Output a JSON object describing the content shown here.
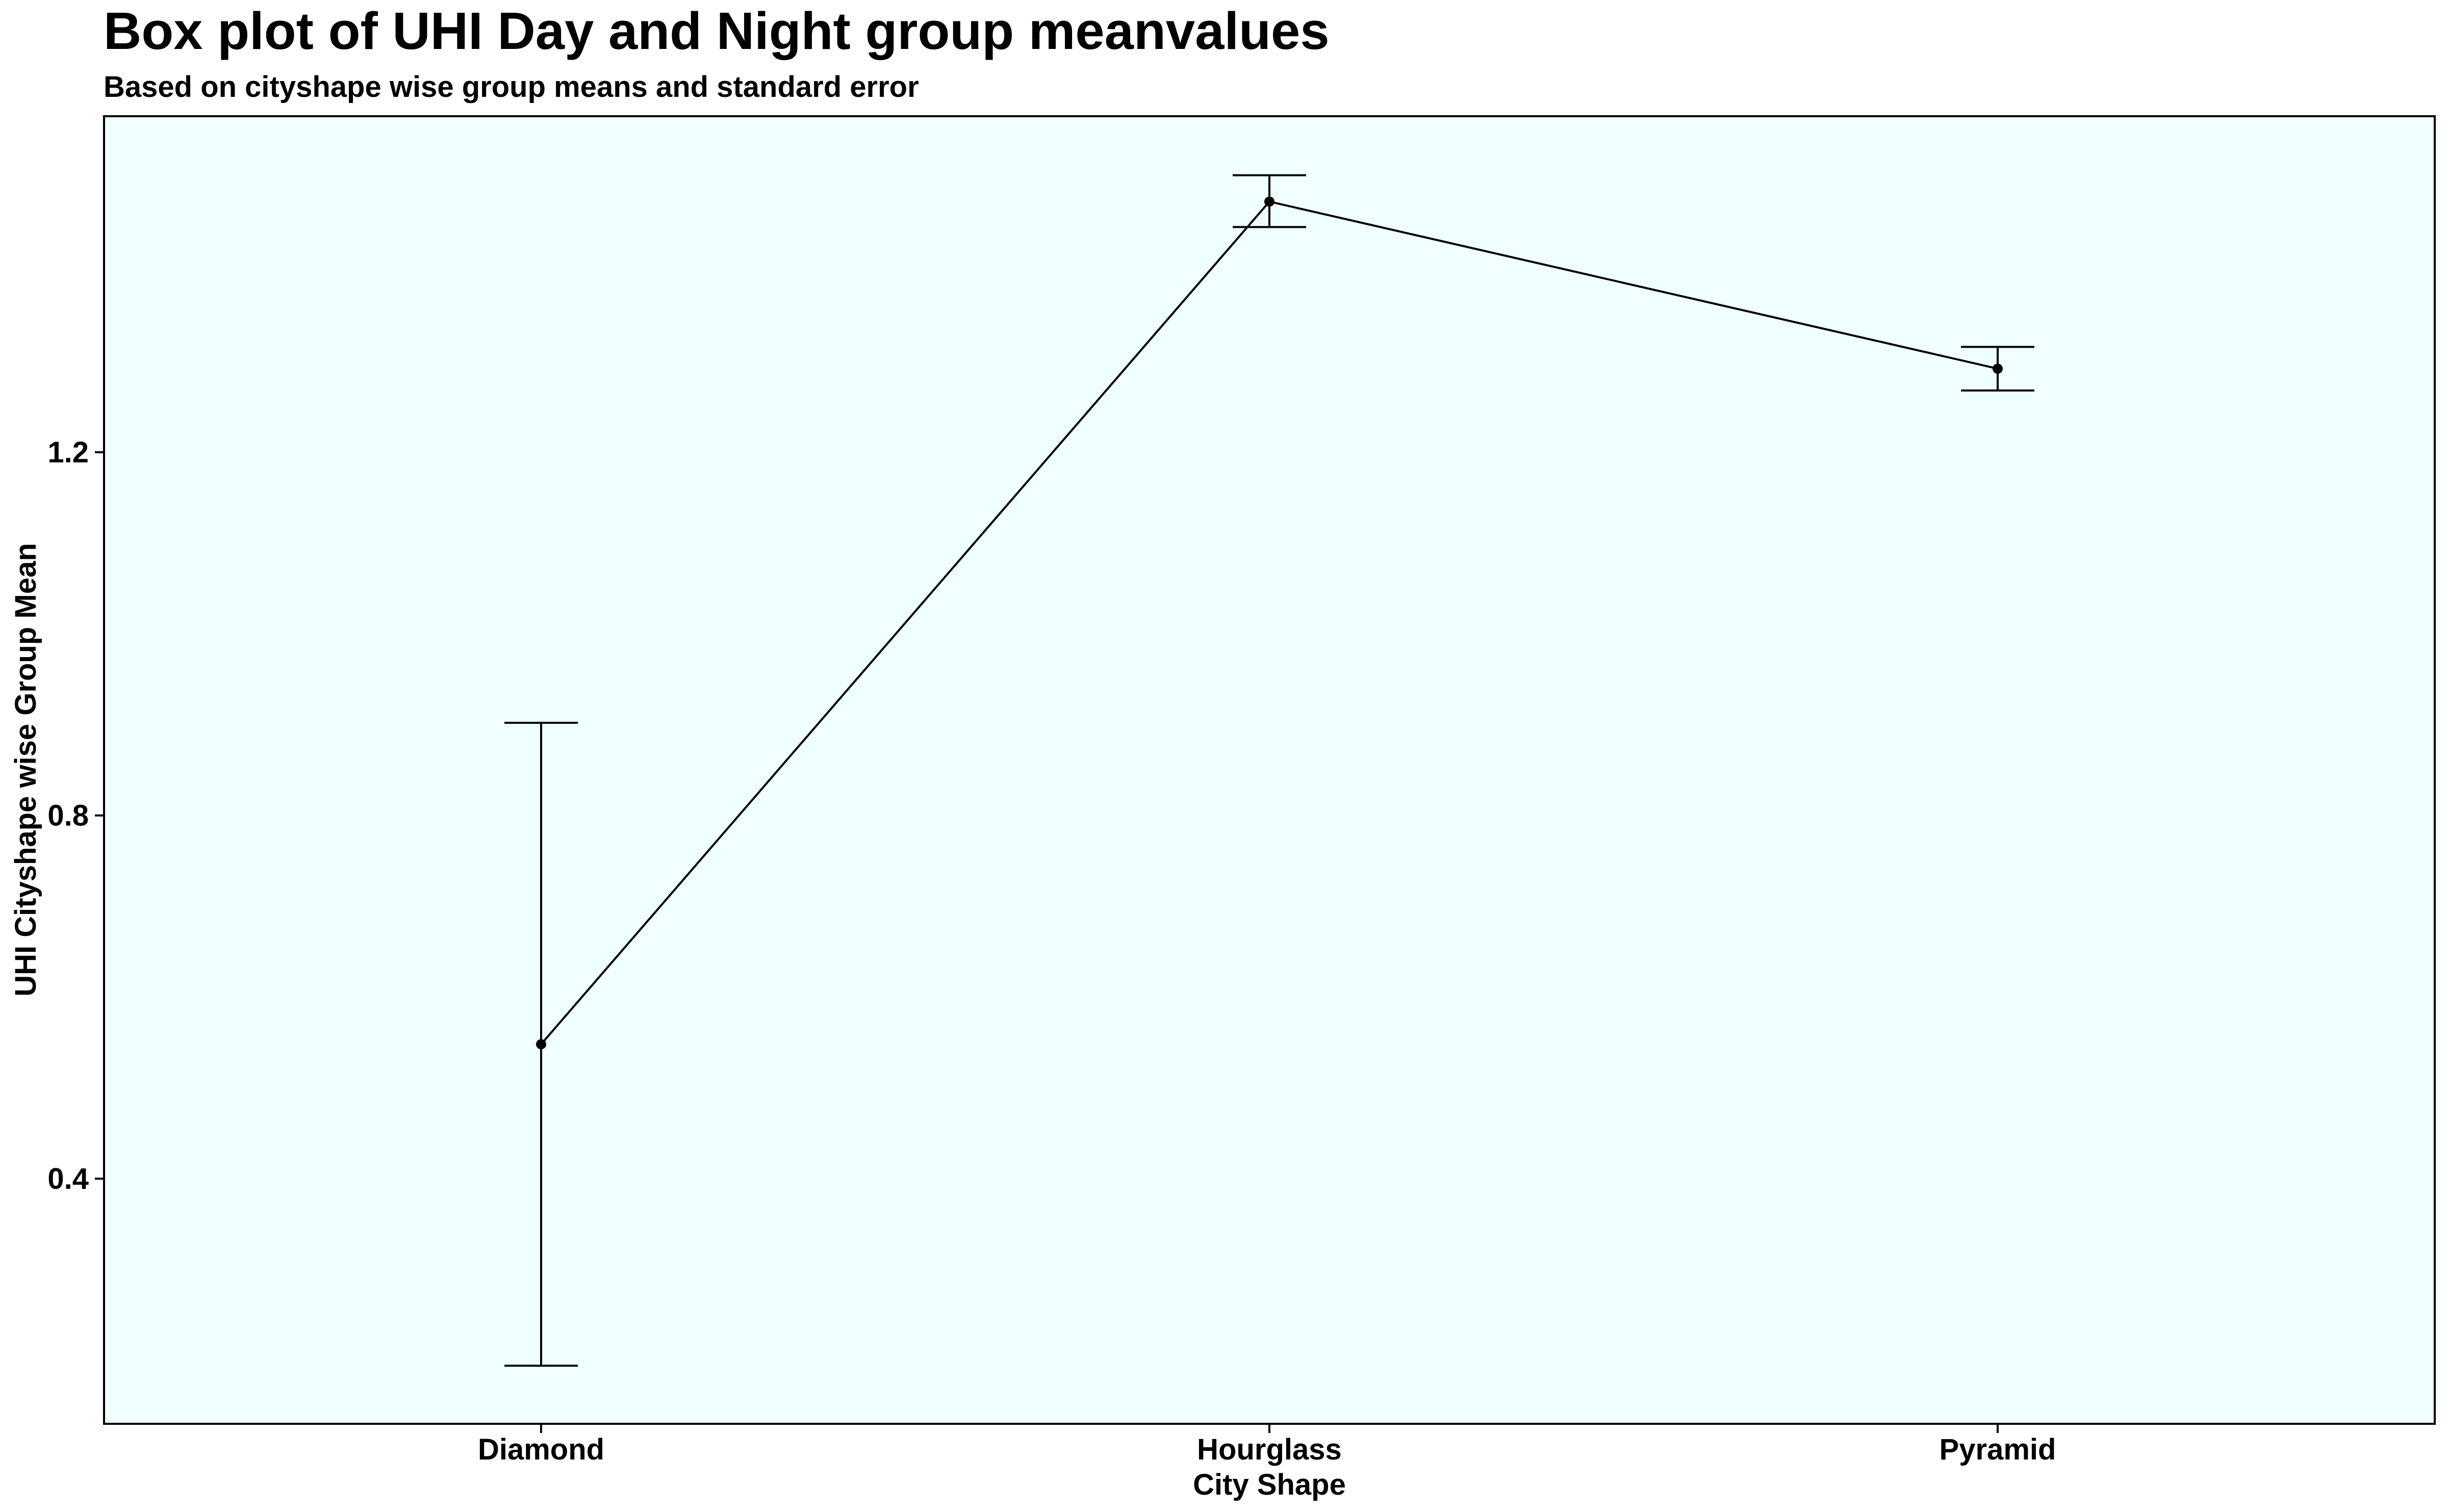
{
  "colors": {
    "panel_background": "#F0FFFF",
    "line": "#000000",
    "points": "#000000",
    "error_bars": "#000000",
    "page_background": "#FFFFFF"
  },
  "chart_data": {
    "type": "line",
    "title": "Box plot of UHI Day and Night group meanvalues",
    "subtitle": "Based on cityshape wise group means and standard error",
    "xlabel": "City Shape",
    "ylabel": "UHI Cityshape wise Group Mean",
    "categories": [
      "Diamond",
      "Hourglass",
      "Pyramid"
    ],
    "values": [
      0.548,
      1.476,
      1.292
    ],
    "error_upper": [
      0.902,
      1.505,
      1.316
    ],
    "error_lower": [
      0.194,
      1.448,
      1.268
    ],
    "ylim": [
      0.13,
      1.57
    ],
    "yticks": [
      0.4,
      0.8,
      1.2
    ],
    "ytick_labels": [
      "0.4",
      "0.8",
      "1.2"
    ],
    "grid": false,
    "legend": "none"
  }
}
